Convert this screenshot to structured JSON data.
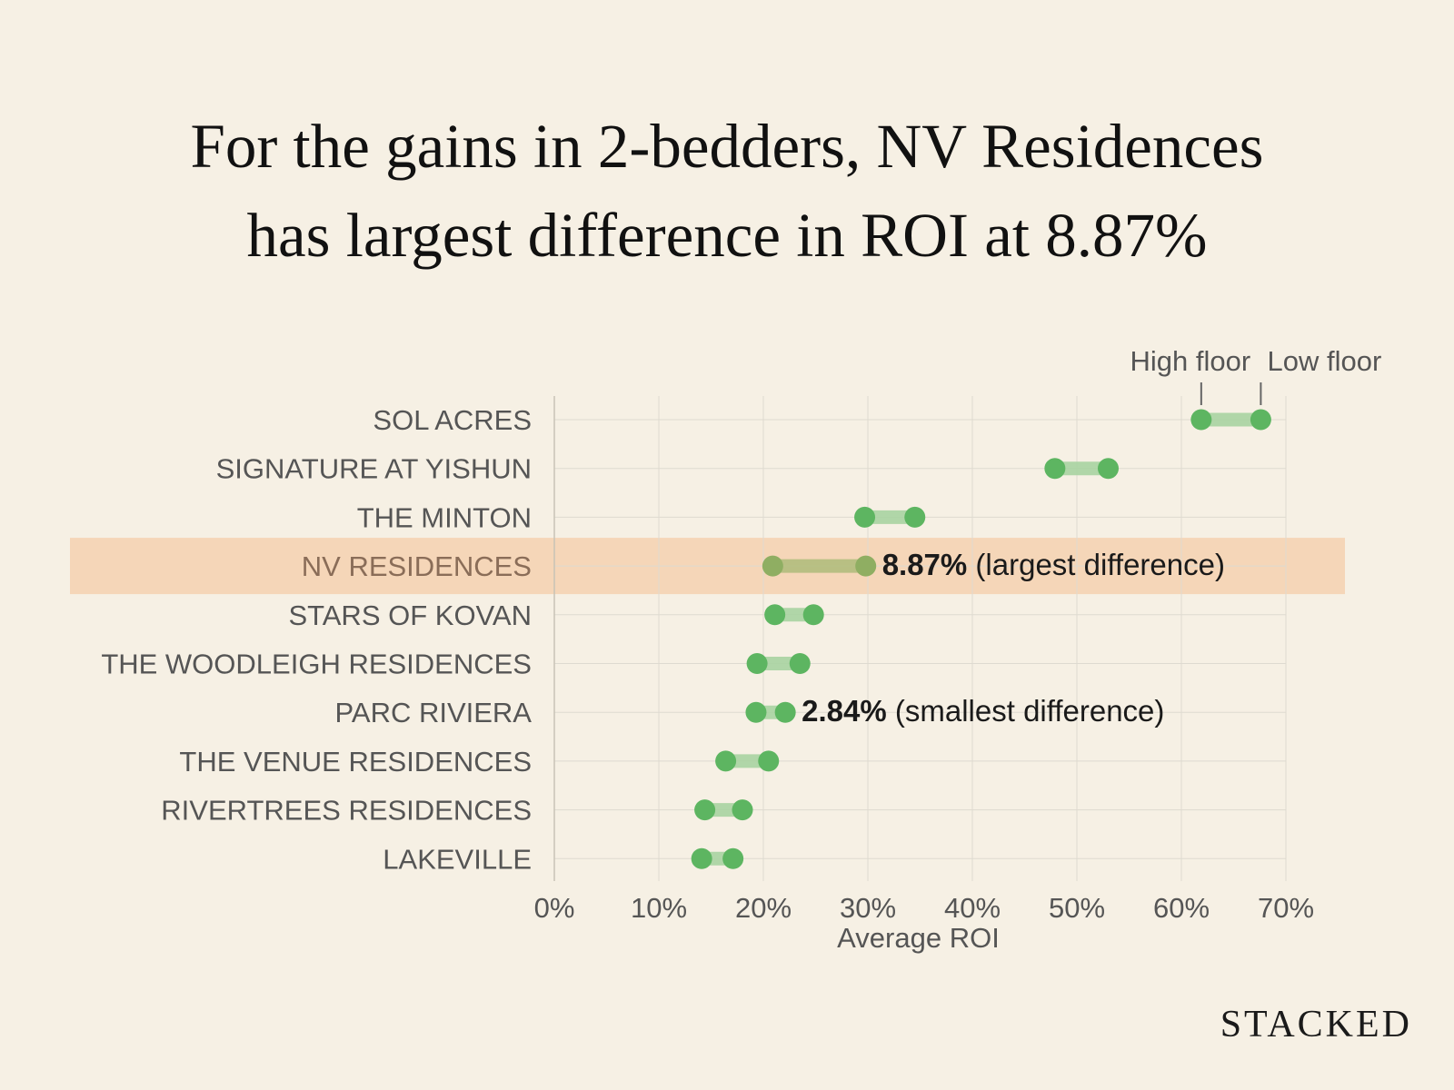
{
  "title": {
    "line1": "For the gains in 2-bedders, NV Residences",
    "line2": "has largest difference in ROI at 8.87%"
  },
  "brand": "STACKED",
  "colors": {
    "background": "#f6f0e4",
    "dot": "#5db561",
    "bar": "#a9d3a1",
    "highlight_band": "#f5d6b8",
    "highlight_dot": "#8fae62",
    "highlight_bar": "#b1bd7d",
    "highlight_label": "#8a6d58"
  },
  "chart_data": {
    "type": "dumbbell",
    "xlabel": "Average ROI",
    "xlim": [
      0,
      70
    ],
    "xticks": [
      0,
      10,
      20,
      30,
      40,
      50,
      60,
      70
    ],
    "tick_format": "{v}%",
    "grid": true,
    "legend": {
      "high": "High floor",
      "low": "Low floor",
      "placement": "top-right"
    },
    "categories": [
      "SOL ACRES",
      "SIGNATURE AT YISHUN",
      "THE MINTON",
      "NV RESIDENCES",
      "STARS OF KOVAN",
      "THE WOODLEIGH RESIDENCES",
      "PARC RIVIERA",
      "THE VENUE RESIDENCES",
      "RIVERTREES RESIDENCES",
      "LAKEVILLE"
    ],
    "series": [
      {
        "name": "High floor",
        "values": [
          61.9,
          47.9,
          29.7,
          20.9,
          21.1,
          19.4,
          19.3,
          16.4,
          14.4,
          14.1
        ]
      },
      {
        "name": "Low floor",
        "values": [
          67.6,
          53.0,
          34.5,
          29.8,
          24.8,
          23.5,
          22.1,
          20.5,
          18.0,
          17.1
        ]
      }
    ],
    "highlight": "NV RESIDENCES",
    "annotations": [
      {
        "category": "NV RESIDENCES",
        "value": "8.87%",
        "note": "(largest difference)"
      },
      {
        "category": "PARC RIVIERA",
        "value": "2.84%",
        "note": "(smallest difference)"
      }
    ]
  }
}
